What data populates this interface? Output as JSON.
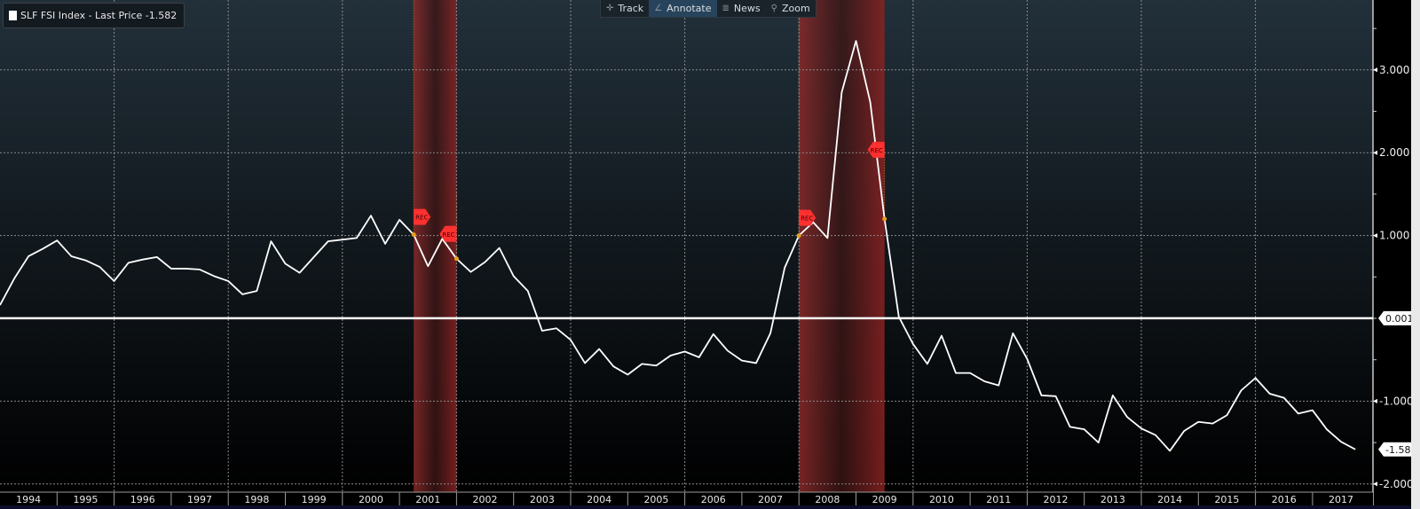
{
  "legend": {
    "label": "SLF FSI Index - Last Price -1.582",
    "swatch_color": "#ffffff"
  },
  "toolbar": {
    "items": [
      {
        "label": "Track",
        "icon": "crosshair-icon",
        "active": false
      },
      {
        "label": "Annotate",
        "icon": "pencil-icon",
        "active": true
      },
      {
        "label": "News",
        "icon": "news-icon",
        "active": false
      },
      {
        "label": "Zoom",
        "icon": "magnifier-icon",
        "active": false
      }
    ]
  },
  "colors": {
    "line": "#ffffff",
    "recession": "#8b2323",
    "rec_flag": "#ff3030",
    "rec_dot": "#e8a020",
    "bg_top": "#22303a",
    "bg_bottom": "#000000"
  },
  "chart_data": {
    "type": "line",
    "title": "",
    "series": [
      {
        "name": "SLF FSI Index - Last Price",
        "values": [
          0.16,
          0.48,
          0.75,
          0.84,
          0.94,
          0.75,
          0.7,
          0.62,
          0.45,
          0.67,
          0.71,
          0.74,
          0.6,
          0.6,
          0.59,
          0.51,
          0.45,
          0.29,
          0.33,
          0.93,
          0.66,
          0.55,
          0.74,
          0.93,
          0.95,
          0.97,
          1.24,
          0.9,
          1.19,
          1.01,
          0.63,
          0.96,
          0.72,
          0.56,
          0.68,
          0.85,
          0.51,
          0.33,
          -0.15,
          -0.12,
          -0.26,
          -0.54,
          -0.37,
          -0.58,
          -0.68,
          -0.55,
          -0.57,
          -0.45,
          -0.4,
          -0.47,
          -0.19,
          -0.39,
          -0.51,
          -0.54,
          -0.18,
          0.61,
          1.0,
          1.16,
          0.97,
          2.73,
          3.35,
          2.61,
          1.2,
          0.02,
          -0.31,
          -0.55,
          -0.21,
          -0.66,
          -0.66,
          -0.76,
          -0.81,
          -0.18,
          -0.49,
          -0.93,
          -0.94,
          -1.31,
          -1.34,
          -1.5,
          -0.93,
          -1.19,
          -1.33,
          -1.41,
          -1.6,
          -1.36,
          -1.25,
          -1.27,
          -1.17,
          -0.87,
          -0.72,
          -0.91,
          -0.96,
          -1.15,
          -1.11,
          -1.34,
          -1.49,
          -1.582
        ]
      }
    ],
    "x_start": "1994-Q1",
    "x_frequency": "quarterly",
    "x_tick_labels": [
      "1994",
      "1995",
      "1996",
      "1997",
      "1998",
      "1999",
      "2000",
      "2001",
      "2002",
      "2003",
      "2004",
      "2005",
      "2006",
      "2007",
      "2008",
      "2009",
      "2010",
      "2011",
      "2012",
      "2013",
      "2014",
      "2015",
      "2016",
      "2017"
    ],
    "y_ticks": [
      3,
      2,
      1,
      -1,
      -2
    ],
    "y_tick_labels": [
      "3.000",
      "2.000",
      "1.000",
      "-1.000",
      "-2.000"
    ],
    "ylim": [
      -2.1,
      3.85
    ],
    "xlim": [
      "1994-Q1",
      "2018-Q1"
    ],
    "grid": true,
    "reference_line": {
      "value": 0.001,
      "label": "0.001"
    },
    "last_value_label": {
      "value": -1.582,
      "label": "-1.582"
    },
    "recessions": [
      {
        "start": "2001-Q2",
        "end": "2002-Q1",
        "start_flag": "REC",
        "end_flag": "REC",
        "start_value": 1.01,
        "end_value": 0.72
      },
      {
        "start": "2008-Q1",
        "end": "2009-Q3",
        "start_flag": "REC",
        "end_flag": "REC",
        "start_value": 1.0,
        "end_value": 1.2
      }
    ]
  }
}
